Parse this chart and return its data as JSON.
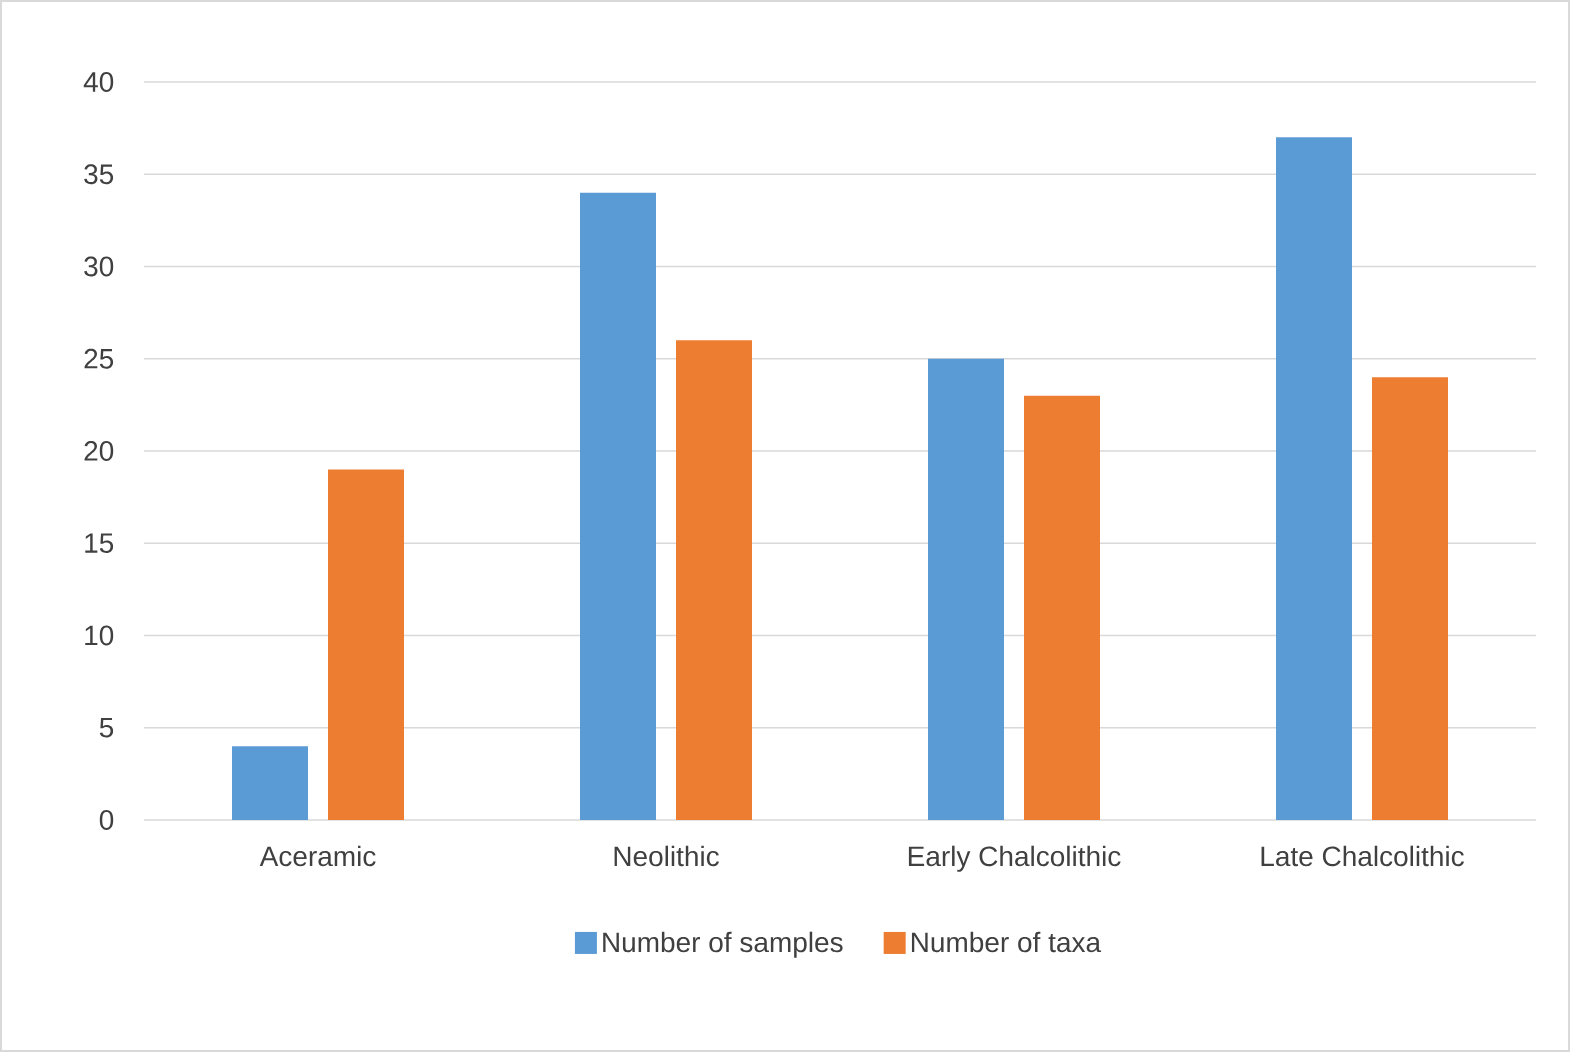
{
  "chart_data": {
    "type": "bar",
    "categories": [
      "Aceramic",
      "Neolithic",
      "Early Chalcolithic",
      "Late  Chalcolithic"
    ],
    "series": [
      {
        "name": "Number of samples",
        "color": "#5b9bd5",
        "values": [
          4,
          34,
          25,
          37
        ]
      },
      {
        "name": "Number of taxa",
        "color": "#ed7d31",
        "values": [
          19,
          26,
          23,
          24
        ]
      }
    ],
    "ylim": [
      0,
      40
    ],
    "yticks": [
      0,
      5,
      10,
      15,
      20,
      25,
      30,
      35,
      40
    ],
    "grid": "y",
    "legend": "bottom"
  }
}
